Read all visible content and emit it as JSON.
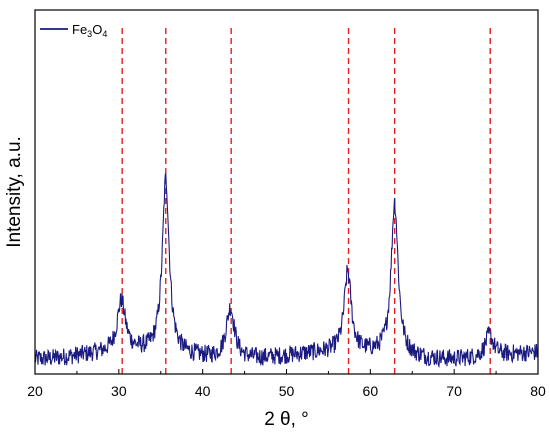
{
  "chart_data": {
    "type": "line",
    "title": "",
    "xlabel": "2 θ, °",
    "ylabel": "Intensity, a.u.",
    "xlim": [
      20,
      80
    ],
    "x_ticks": [
      20,
      30,
      40,
      50,
      60,
      70,
      80
    ],
    "y_ticks_visible": false,
    "grid": false,
    "legend": {
      "position": "top-left",
      "series_label_base": "Fe",
      "sub1": "3",
      "mid": "O",
      "sub2": "4"
    },
    "series": [
      {
        "name": "Fe3O4",
        "color": "#1a1a80",
        "baseline": 0.05,
        "noise": 0.025,
        "peaks": [
          {
            "x": 30.3,
            "height": 0.14,
            "width": 0.6
          },
          {
            "x": 35.6,
            "height": 0.48,
            "width": 0.5
          },
          {
            "x": 43.3,
            "height": 0.14,
            "width": 0.6
          },
          {
            "x": 57.3,
            "height": 0.22,
            "width": 0.5
          },
          {
            "x": 62.9,
            "height": 0.42,
            "width": 0.5
          },
          {
            "x": 74.2,
            "height": 0.06,
            "width": 0.6
          }
        ]
      }
    ],
    "reference_lines": {
      "color": "#e02020",
      "style": "dashed",
      "x": [
        30.4,
        35.6,
        43.4,
        57.4,
        62.9,
        74.3
      ]
    }
  }
}
